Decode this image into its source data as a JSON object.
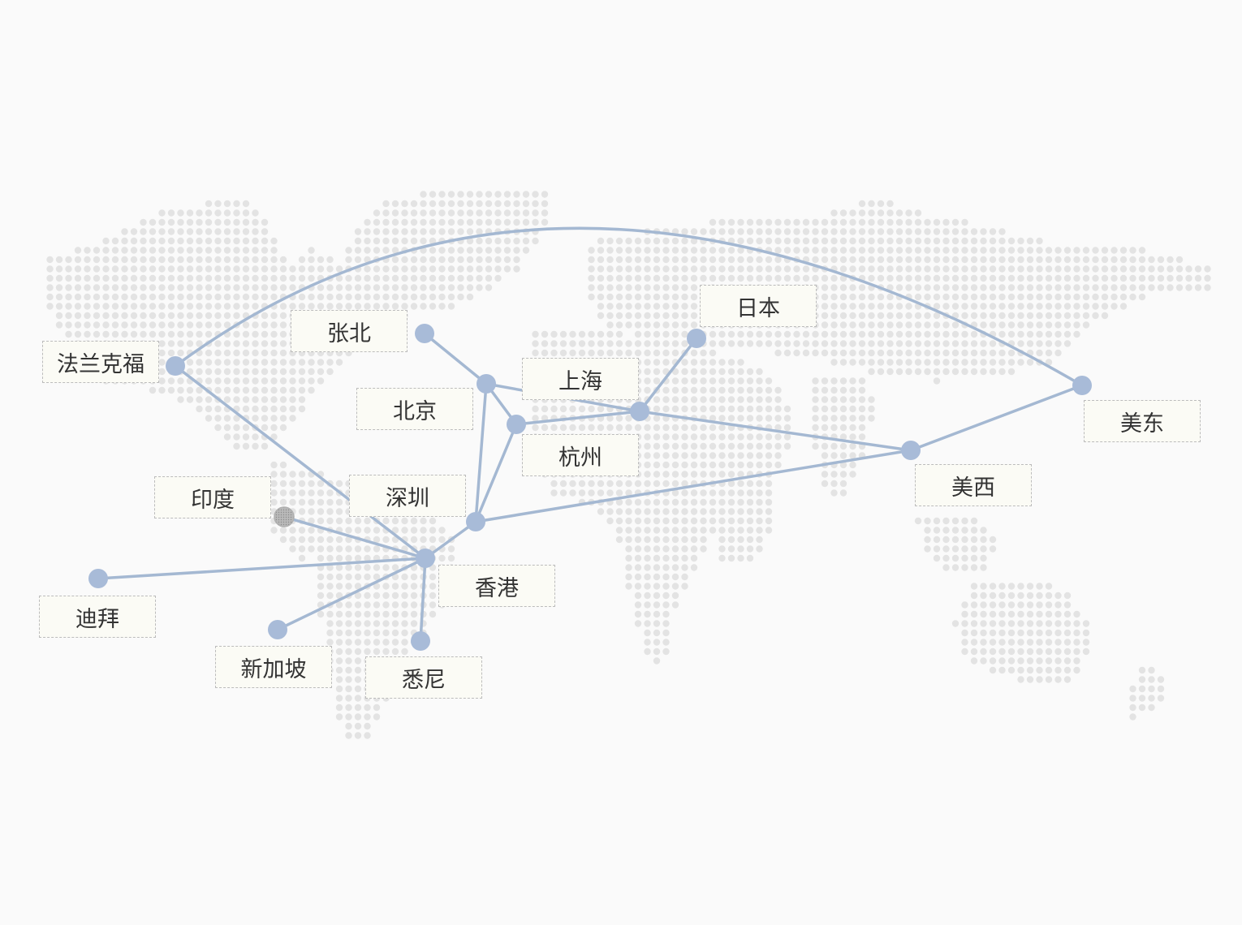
{
  "map": {
    "colors": {
      "dot": "#e3e3e3",
      "link": "#a4b8d2",
      "node": "#a8bbd8",
      "node_special": "#b0b0b0",
      "label_bg": "#fbfbf5",
      "label_border": "#bcbcbc"
    }
  },
  "nodes": [
    {
      "id": "frankfurt",
      "label": "法兰克福",
      "style": "normal"
    },
    {
      "id": "zhangbei",
      "label": "张北",
      "style": "normal"
    },
    {
      "id": "beijing",
      "label": "北京",
      "style": "normal"
    },
    {
      "id": "shanghai",
      "label": "上海",
      "style": "normal"
    },
    {
      "id": "hangzhou",
      "label": "杭州",
      "style": "normal"
    },
    {
      "id": "japan",
      "label": "日本",
      "style": "normal"
    },
    {
      "id": "us_east",
      "label": "美东",
      "style": "normal"
    },
    {
      "id": "us_west",
      "label": "美西",
      "style": "normal"
    },
    {
      "id": "india",
      "label": "印度",
      "style": "special"
    },
    {
      "id": "shenzhen",
      "label": "深圳",
      "style": "normal"
    },
    {
      "id": "hongkong",
      "label": "香港",
      "style": "normal"
    },
    {
      "id": "dubai",
      "label": "迪拜",
      "style": "normal"
    },
    {
      "id": "singapore",
      "label": "新加坡",
      "style": "normal"
    },
    {
      "id": "sydney",
      "label": "悉尼",
      "style": "normal"
    }
  ],
  "links": [
    {
      "from": "frankfurt",
      "to": "us_east",
      "curved": true
    },
    {
      "from": "frankfurt",
      "to": "shenzhen"
    },
    {
      "from": "zhangbei",
      "to": "beijing"
    },
    {
      "from": "beijing",
      "to": "hangzhou"
    },
    {
      "from": "beijing",
      "to": "shanghai"
    },
    {
      "from": "beijing",
      "to": "hongkong"
    },
    {
      "from": "hangzhou",
      "to": "shanghai"
    },
    {
      "from": "hangzhou",
      "to": "hongkong"
    },
    {
      "from": "shanghai",
      "to": "japan"
    },
    {
      "from": "shanghai",
      "to": "us_west"
    },
    {
      "from": "us_west",
      "to": "us_east"
    },
    {
      "from": "hongkong",
      "to": "us_west"
    },
    {
      "from": "hongkong",
      "to": "shenzhen"
    },
    {
      "from": "shenzhen",
      "to": "india"
    },
    {
      "from": "shenzhen",
      "to": "dubai"
    },
    {
      "from": "shenzhen",
      "to": "singapore"
    },
    {
      "from": "shenzhen",
      "to": "sydney"
    }
  ]
}
